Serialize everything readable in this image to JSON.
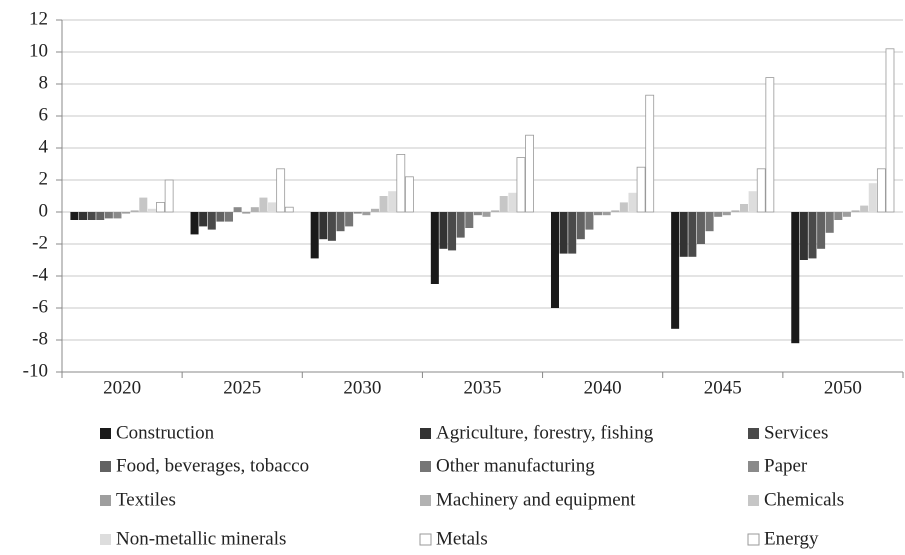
{
  "chart_data": {
    "type": "bar",
    "categories": [
      "2020",
      "2025",
      "2030",
      "2035",
      "2040",
      "2045",
      "2050"
    ],
    "series": [
      {
        "name": "Construction",
        "color": "#1a1a1a",
        "values": [
          -0.5,
          -1.4,
          -2.9,
          -4.5,
          -6.0,
          -7.3,
          -8.2
        ]
      },
      {
        "name": "Agriculture, forestry, fishing",
        "color": "#333333",
        "values": [
          -0.5,
          -0.9,
          -1.7,
          -2.3,
          -2.6,
          -2.8,
          -3.0
        ]
      },
      {
        "name": "Services",
        "color": "#4a4a4a",
        "values": [
          -0.5,
          -1.1,
          -1.8,
          -2.4,
          -2.6,
          -2.8,
          -2.9
        ]
      },
      {
        "name": "Food, beverages, tobacco",
        "color": "#626262",
        "values": [
          -0.5,
          -0.6,
          -1.2,
          -1.6,
          -1.7,
          -2.0,
          -2.3
        ]
      },
      {
        "name": "Other manufacturing",
        "color": "#767676",
        "values": [
          -0.4,
          -0.6,
          -0.9,
          -1.0,
          -1.1,
          -1.2,
          -1.3
        ]
      },
      {
        "name": "Paper",
        "color": "#8a8a8a",
        "values": [
          -0.4,
          0.3,
          -0.1,
          -0.2,
          -0.2,
          -0.3,
          -0.5
        ]
      },
      {
        "name": "Textiles",
        "color": "#9e9e9e",
        "values": [
          -0.1,
          -0.1,
          -0.2,
          -0.3,
          -0.2,
          -0.2,
          -0.3
        ]
      },
      {
        "name": "Machinery and equipment",
        "color": "#b2b2b2",
        "values": [
          0.1,
          0.3,
          0.2,
          0.1,
          0.1,
          0.1,
          0.1
        ]
      },
      {
        "name": "Chemicals",
        "color": "#c6c6c6",
        "values": [
          0.9,
          0.9,
          1.0,
          1.0,
          0.6,
          0.5,
          0.4
        ]
      },
      {
        "name": "Non-metallic minerals",
        "color": "#dddddd",
        "values": [
          0.2,
          0.6,
          1.3,
          1.2,
          1.2,
          1.3,
          1.8
        ]
      },
      {
        "name": "Metals",
        "color": "#ffffff",
        "values": [
          0.6,
          2.7,
          3.6,
          3.4,
          2.8,
          2.7,
          2.7
        ]
      },
      {
        "name": "Energy",
        "color": "#ffffff",
        "values": [
          2.0,
          0.3,
          2.2,
          4.8,
          7.3,
          8.4,
          10.2
        ]
      }
    ],
    "ylim": [
      -10,
      12
    ],
    "yticks": [
      -10,
      -8,
      -6,
      -4,
      -2,
      0,
      2,
      4,
      6,
      8,
      10,
      12
    ],
    "grid": true,
    "legend": "bottom"
  }
}
